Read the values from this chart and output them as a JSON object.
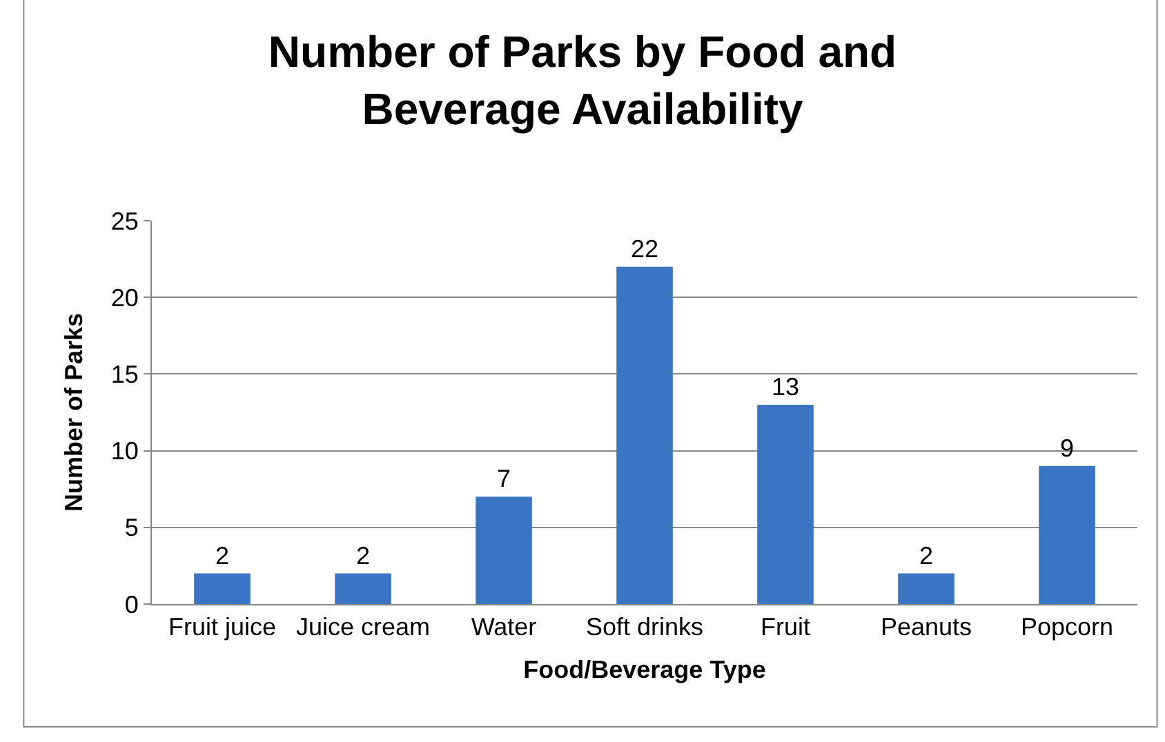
{
  "chart_data": {
    "type": "bar",
    "title": "Number of Parks by Food and Beverage Availability",
    "xlabel": "Food/Beverage Type",
    "ylabel": "Number of Parks",
    "categories": [
      "Fruit juice",
      "Juice cream",
      "Water",
      "Soft drinks",
      "Fruit",
      "Peanuts",
      "Popcorn"
    ],
    "values": [
      2,
      2,
      7,
      22,
      13,
      2,
      9
    ],
    "color": "#3a75c4",
    "ylim": [
      0,
      25
    ],
    "yticks": [
      0,
      5,
      10,
      15,
      20,
      25
    ],
    "grid": "y",
    "data_labels": true,
    "legend": false
  }
}
